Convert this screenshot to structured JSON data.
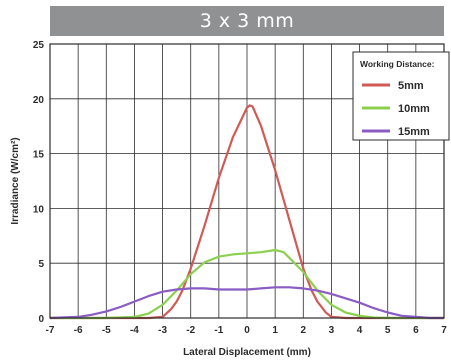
{
  "chart_data": {
    "type": "line",
    "title": "3 x 3 mm",
    "xlabel": "Lateral Displacement (mm)",
    "ylabel": "Irradiance (W/cm²)",
    "xlim": [
      -7,
      7
    ],
    "ylim": [
      0,
      25
    ],
    "xticks": [
      "-7",
      "-6",
      "-5",
      "-4",
      "-3",
      "-2",
      "-1",
      "0",
      "1",
      "2",
      "3",
      "4",
      "5",
      "6",
      "7"
    ],
    "yticks": [
      "0",
      "5",
      "10",
      "15",
      "20",
      "25"
    ],
    "grid": true,
    "legend": {
      "title": "Working Distance:",
      "position": "top-right"
    },
    "series": [
      {
        "name": "5mm",
        "color": "#d05a55",
        "x": [
          -7,
          -5,
          -4,
          -3.5,
          -3,
          -2.7,
          -2.5,
          -2.3,
          -2,
          -1.5,
          -1,
          -0.5,
          0,
          0.1,
          0.2,
          0.5,
          1,
          1.5,
          2,
          2.3,
          2.5,
          2.8,
          3,
          3.5,
          4,
          5,
          7
        ],
        "y": [
          0,
          0,
          0,
          0,
          0.1,
          0.8,
          1.5,
          2.5,
          4.5,
          8.5,
          12.8,
          16.5,
          19.2,
          19.4,
          19.3,
          17.5,
          13.5,
          9,
          4.5,
          2.5,
          1.5,
          0.5,
          0.1,
          0,
          0,
          0,
          0
        ]
      },
      {
        "name": "10mm",
        "color": "#8cd04f",
        "x": [
          -7,
          -6,
          -5,
          -4,
          -3.5,
          -3,
          -2.5,
          -2,
          -1.5,
          -1,
          -0.5,
          0,
          0.5,
          1,
          1.3,
          1.5,
          2,
          2.5,
          3,
          3.5,
          4,
          4.5,
          5,
          6,
          7
        ],
        "y": [
          0,
          0,
          0,
          0.1,
          0.4,
          1.2,
          2.5,
          4.0,
          5.1,
          5.6,
          5.8,
          5.9,
          6.0,
          6.2,
          6.0,
          5.5,
          4.2,
          2.5,
          1.2,
          0.5,
          0.2,
          0.05,
          0,
          0,
          0
        ]
      },
      {
        "name": "15mm",
        "color": "#8a5cc4",
        "x": [
          -7,
          -6,
          -5.5,
          -5,
          -4.5,
          -4,
          -3.5,
          -3,
          -2.5,
          -2,
          -1.5,
          -1,
          -0.5,
          0,
          0.5,
          1,
          1.5,
          2,
          2.5,
          3,
          3.5,
          4,
          4.5,
          5,
          5.5,
          6,
          6.5,
          7
        ],
        "y": [
          0,
          0.1,
          0.3,
          0.6,
          1.0,
          1.5,
          2.0,
          2.4,
          2.6,
          2.7,
          2.7,
          2.6,
          2.6,
          2.6,
          2.7,
          2.8,
          2.8,
          2.7,
          2.5,
          2.2,
          1.8,
          1.4,
          0.9,
          0.5,
          0.2,
          0.1,
          0,
          0
        ]
      }
    ]
  }
}
